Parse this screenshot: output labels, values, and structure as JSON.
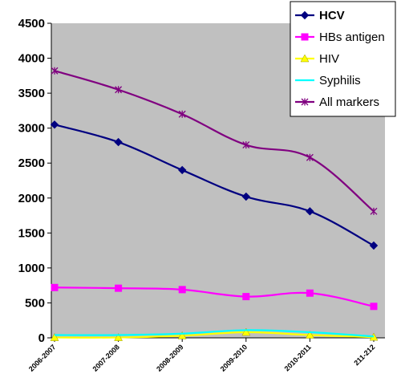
{
  "chart_data": {
    "type": "line",
    "categories": [
      "2006-2007",
      "2007-2008",
      "2008-2009",
      "2009-2010",
      "2010-2011",
      "211-212"
    ],
    "ylim": [
      0,
      4500
    ],
    "yticks": [
      0,
      500,
      1000,
      1500,
      2000,
      2500,
      3000,
      3500,
      4000,
      4500
    ],
    "grid": false,
    "plot_background": "#c0c0c0",
    "legend_position": "top-right",
    "title": "",
    "xlabel": "",
    "ylabel": "",
    "series": [
      {
        "name": "HCV",
        "color": "#000080",
        "marker": "diamond",
        "values": [
          3050,
          2800,
          2400,
          2020,
          1810,
          1320
        ]
      },
      {
        "name": "HBs antigen",
        "color": "#ff00ff",
        "marker": "square",
        "values": [
          720,
          710,
          690,
          590,
          640,
          450
        ]
      },
      {
        "name": "HIV",
        "color": "#ffff00",
        "marker": "triangle",
        "values": [
          5,
          5,
          30,
          80,
          40,
          10
        ]
      },
      {
        "name": "Syphilis",
        "color": "#00ffff",
        "marker": "none",
        "values": [
          40,
          40,
          60,
          110,
          80,
          20
        ]
      },
      {
        "name": "All  markers",
        "color": "#800080",
        "marker": "x",
        "values": [
          3820,
          3550,
          3200,
          2760,
          2580,
          1810
        ]
      }
    ]
  }
}
